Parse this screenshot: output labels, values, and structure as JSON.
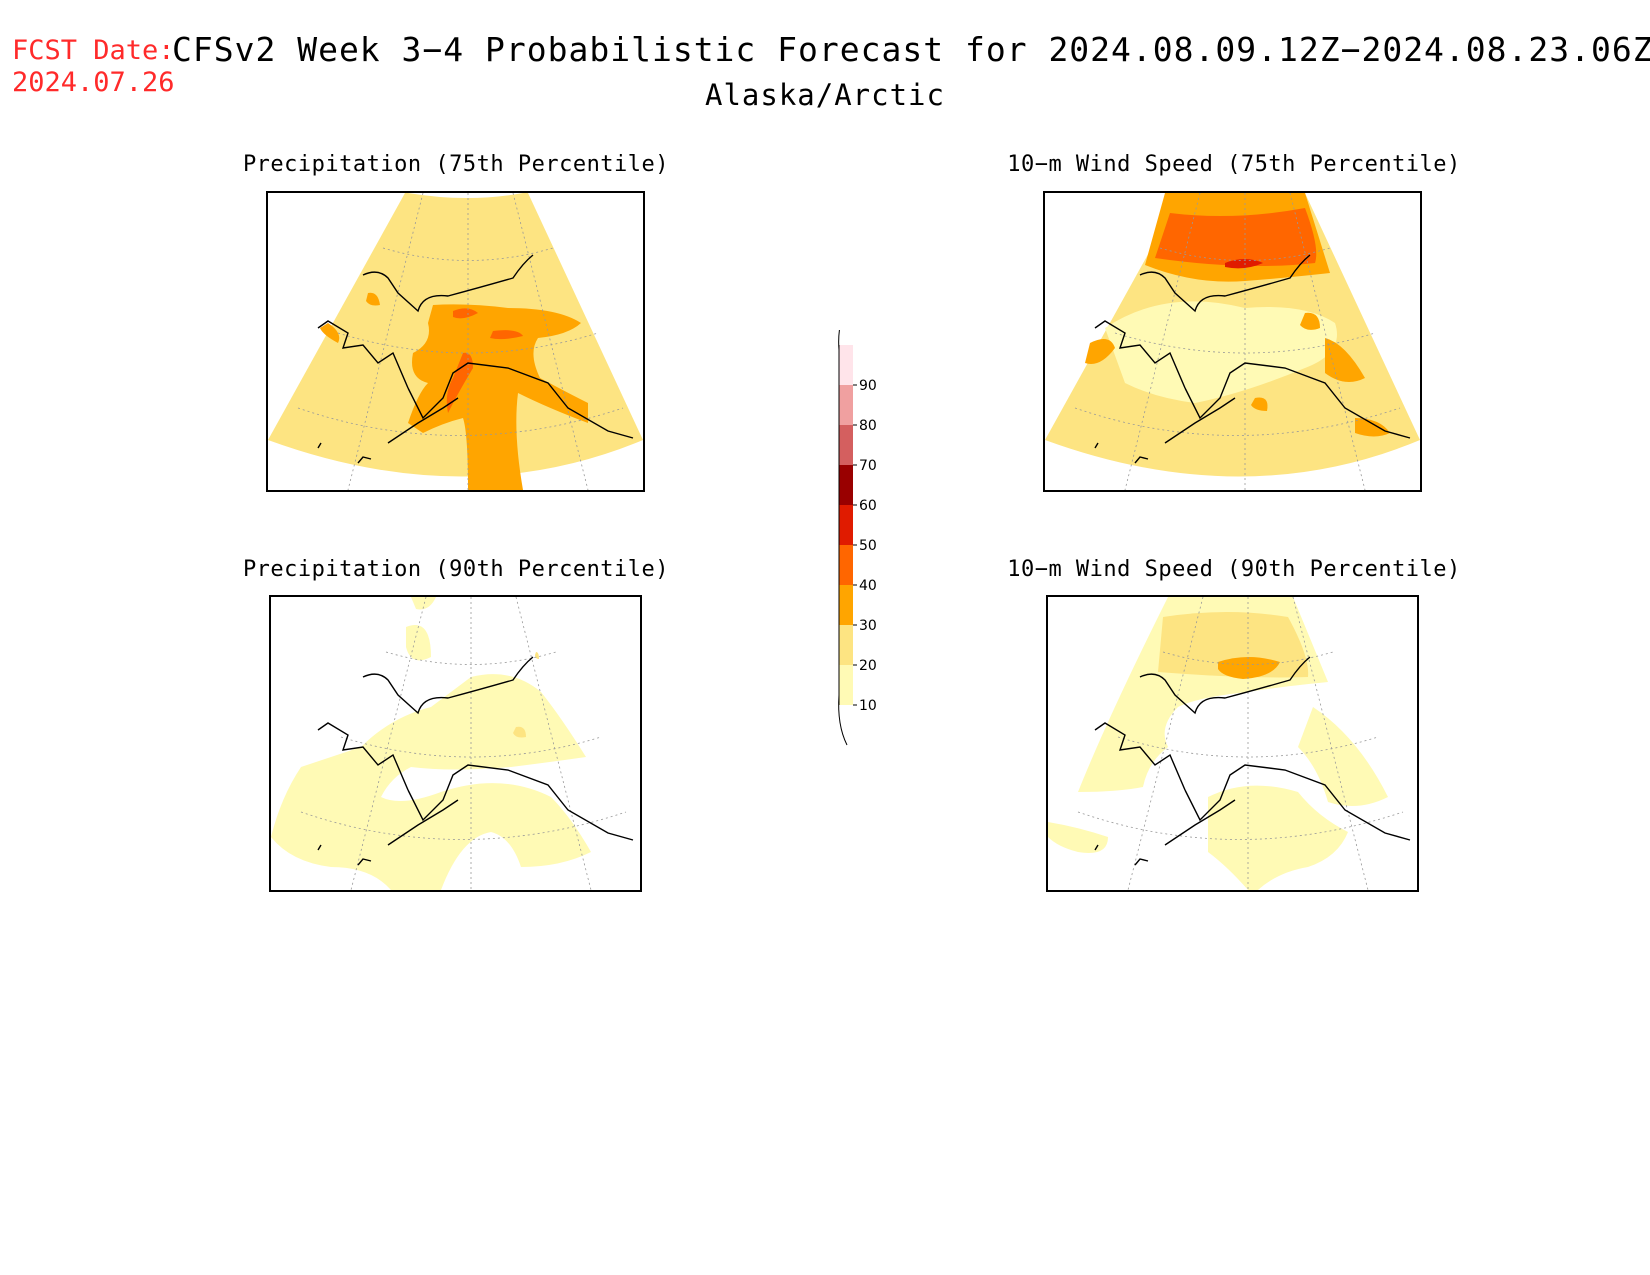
{
  "header": {
    "fcst_label": "FCST Date:",
    "fcst_date": "2024.07.26",
    "title": "CFSv2 Week 3−4 Probabilistic Forecast for 2024.08.09.12Z−2024.08.23.06Z",
    "region": "Alaska/Arctic"
  },
  "panels": [
    {
      "title": "Precipitation (75th Percentile)",
      "variable": "precipitation",
      "percentile": 75
    },
    {
      "title": "10−m Wind Speed (75th Percentile)",
      "variable": "wind",
      "percentile": 75
    },
    {
      "title": "Precipitation (90th Percentile)",
      "variable": "precipitation",
      "percentile": 90
    },
    {
      "title": "10−m Wind Speed (90th Percentile)",
      "variable": "wind",
      "percentile": 90
    }
  ],
  "legend": {
    "labels": [
      "10",
      "20",
      "30",
      "40",
      "50",
      "60",
      "70",
      "80",
      "90"
    ],
    "colors": [
      "#fffab5",
      "#fde482",
      "#ffa500",
      "#ff6600",
      "#e01b00",
      "#990000",
      "#d45f5f",
      "#f0a0a0",
      "#ffe4ea"
    ]
  },
  "colors": {
    "bin_10_20": "#fffab5",
    "bin_20_30": "#fde482",
    "bin_30_40": "#ffa500",
    "bin_40_50": "#ff6600",
    "bin_50_60": "#e01b00",
    "fcst_text": "#ff2a2a"
  }
}
